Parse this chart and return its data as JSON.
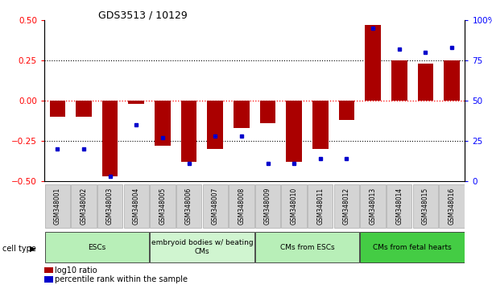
{
  "title": "GDS3513 / 10129",
  "samples": [
    "GSM348001",
    "GSM348002",
    "GSM348003",
    "GSM348004",
    "GSM348005",
    "GSM348006",
    "GSM348007",
    "GSM348008",
    "GSM348009",
    "GSM348010",
    "GSM348011",
    "GSM348012",
    "GSM348013",
    "GSM348014",
    "GSM348015",
    "GSM348016"
  ],
  "log10_ratio": [
    -0.1,
    -0.1,
    -0.47,
    -0.02,
    -0.28,
    -0.38,
    -0.3,
    -0.17,
    -0.14,
    -0.38,
    -0.3,
    -0.12,
    0.47,
    0.25,
    0.23,
    0.25
  ],
  "percentile_rank": [
    20,
    20,
    3,
    35,
    27,
    11,
    28,
    28,
    11,
    11,
    14,
    14,
    95,
    82,
    80,
    83
  ],
  "cell_type_groups": [
    {
      "label": "ESCs",
      "start": 0,
      "end": 3,
      "color": "#b8efb8"
    },
    {
      "label": "embryoid bodies w/ beating\nCMs",
      "start": 4,
      "end": 7,
      "color": "#d0f5d0"
    },
    {
      "label": "CMs from ESCs",
      "start": 8,
      "end": 11,
      "color": "#b8efb8"
    },
    {
      "label": "CMs from fetal hearts",
      "start": 12,
      "end": 15,
      "color": "#44cc44"
    }
  ],
  "bar_color": "#aa0000",
  "dot_color": "#0000cc",
  "ylim_left": [
    -0.5,
    0.5
  ],
  "ylim_right": [
    0,
    100
  ],
  "yticks_left": [
    -0.5,
    -0.25,
    0,
    0.25,
    0.5
  ],
  "yticks_right": [
    0,
    25,
    50,
    75,
    100
  ],
  "legend_red_label": "log10 ratio",
  "legend_blue_label": "percentile rank within the sample",
  "cell_type_label": "cell type"
}
